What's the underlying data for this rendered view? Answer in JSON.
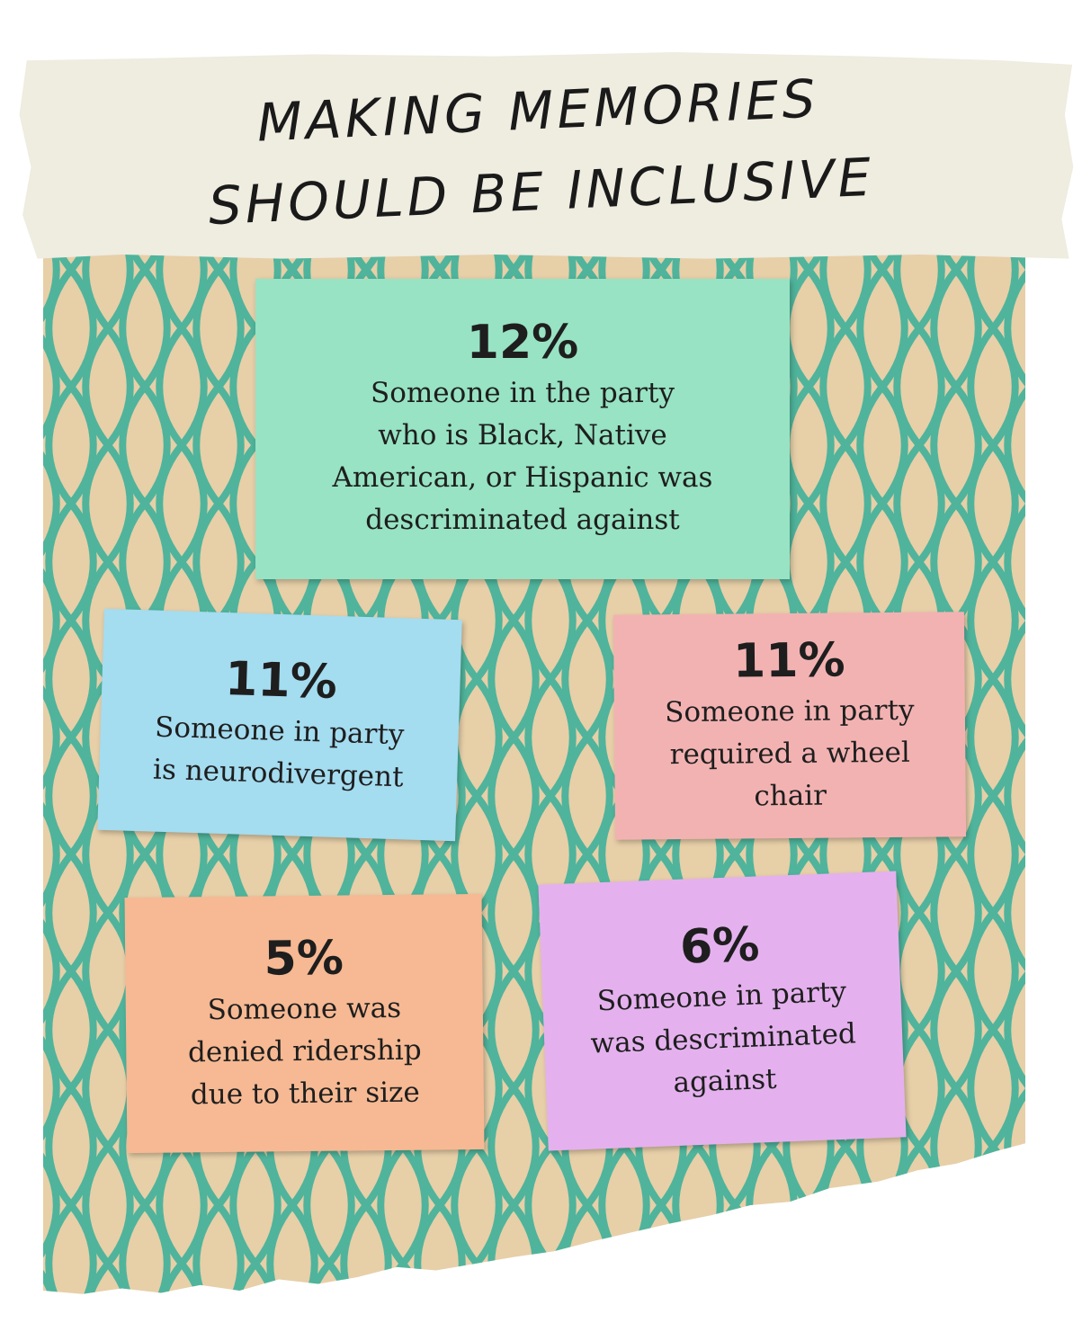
{
  "title": {
    "line1": "Making Memories",
    "line2": "Should Be Inclusive"
  },
  "colors": {
    "paper": "#e7cfa8",
    "net": "#4fb49b",
    "tape": "#efece0",
    "card_green": "#97e3c4",
    "card_blue": "#a4dcf0",
    "card_pink": "#f3b2b2",
    "card_orange": "#f6b993",
    "card_purple": "#e4b1ee"
  },
  "cards": [
    {
      "percent": "12%",
      "description": "Someone in the party\nwho is Black, Native\nAmerican, or Hispanic was\ndescriminated against"
    },
    {
      "percent": "11%",
      "description": "Someone in party\nis neurodivergent"
    },
    {
      "percent": "11%",
      "description": "Someone in party\nrequired a wheel\nchair"
    },
    {
      "percent": "5%",
      "description": "Someone was\ndenied ridership\ndue to their size"
    },
    {
      "percent": "6%",
      "description": "Someone in party\nwas descriminated\nagainst"
    }
  ]
}
